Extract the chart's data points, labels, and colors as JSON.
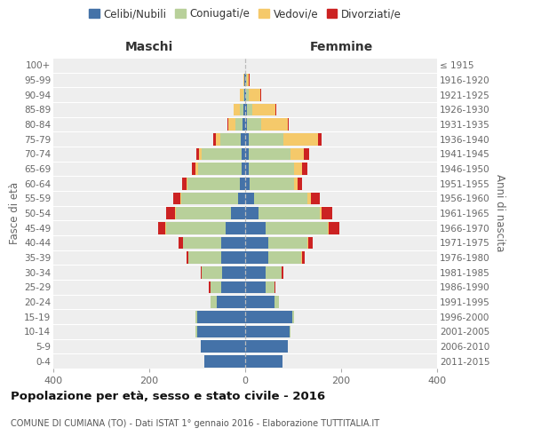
{
  "age_groups": [
    "0-4",
    "5-9",
    "10-14",
    "15-19",
    "20-24",
    "25-29",
    "30-34",
    "35-39",
    "40-44",
    "45-49",
    "50-54",
    "55-59",
    "60-64",
    "65-69",
    "70-74",
    "75-79",
    "80-84",
    "85-89",
    "90-94",
    "95-99",
    "100+"
  ],
  "birth_years": [
    "2011-2015",
    "2006-2010",
    "2001-2005",
    "1996-2000",
    "1991-1995",
    "1986-1990",
    "1981-1985",
    "1976-1980",
    "1971-1975",
    "1966-1970",
    "1961-1965",
    "1956-1960",
    "1951-1955",
    "1946-1950",
    "1941-1945",
    "1936-1940",
    "1931-1935",
    "1926-1930",
    "1921-1925",
    "1916-1920",
    "≤ 1915"
  ],
  "maschi_celibi": [
    85,
    92,
    100,
    100,
    60,
    50,
    48,
    50,
    50,
    40,
    30,
    15,
    12,
    8,
    8,
    10,
    5,
    4,
    2,
    2,
    0
  ],
  "maschi_coniugati": [
    0,
    0,
    3,
    3,
    12,
    23,
    42,
    68,
    80,
    125,
    115,
    118,
    108,
    90,
    82,
    42,
    15,
    8,
    2,
    0,
    0
  ],
  "maschi_vedovi": [
    0,
    0,
    0,
    0,
    0,
    0,
    0,
    0,
    0,
    2,
    2,
    2,
    2,
    5,
    7,
    10,
    15,
    12,
    8,
    2,
    0
  ],
  "maschi_divorziati": [
    0,
    0,
    0,
    0,
    0,
    3,
    3,
    5,
    8,
    15,
    18,
    15,
    10,
    8,
    5,
    5,
    2,
    0,
    0,
    0,
    0
  ],
  "femmine_nubili": [
    78,
    88,
    92,
    98,
    62,
    43,
    42,
    48,
    48,
    42,
    28,
    18,
    10,
    8,
    7,
    8,
    4,
    3,
    2,
    1,
    0
  ],
  "femmine_coniugate": [
    0,
    0,
    3,
    3,
    8,
    18,
    33,
    68,
    82,
    130,
    127,
    112,
    92,
    93,
    88,
    72,
    30,
    12,
    5,
    2,
    0
  ],
  "femmine_vedove": [
    0,
    0,
    0,
    0,
    0,
    0,
    0,
    2,
    2,
    2,
    4,
    7,
    8,
    18,
    28,
    72,
    55,
    48,
    24,
    4,
    0
  ],
  "femmine_divorziate": [
    0,
    0,
    0,
    0,
    0,
    2,
    4,
    7,
    8,
    22,
    22,
    18,
    9,
    10,
    10,
    8,
    2,
    2,
    2,
    2,
    0
  ],
  "color_celibi": "#4472a8",
  "color_coniugati": "#b8d09a",
  "color_vedovi": "#f5c96a",
  "color_divorziati": "#cc2222",
  "xlim": [
    -400,
    400
  ],
  "maschi_label": "Maschi",
  "femmine_label": "Femmine",
  "ylabel_left": "Fasce di età",
  "ylabel_right": "Anni di nascita",
  "title": "Popolazione per età, sesso e stato civile - 2016",
  "subtitle": "COMUNE DI CUMIANA (TO) - Dati ISTAT 1° gennaio 2016 - Elaborazione TUTTITALIA.IT",
  "legend_labels": [
    "Celibi/Nubili",
    "Coniugati/e",
    "Vedovi/e",
    "Divorziati/e"
  ],
  "bg_color": "#eeeeee",
  "grid_color": "#ffffff"
}
